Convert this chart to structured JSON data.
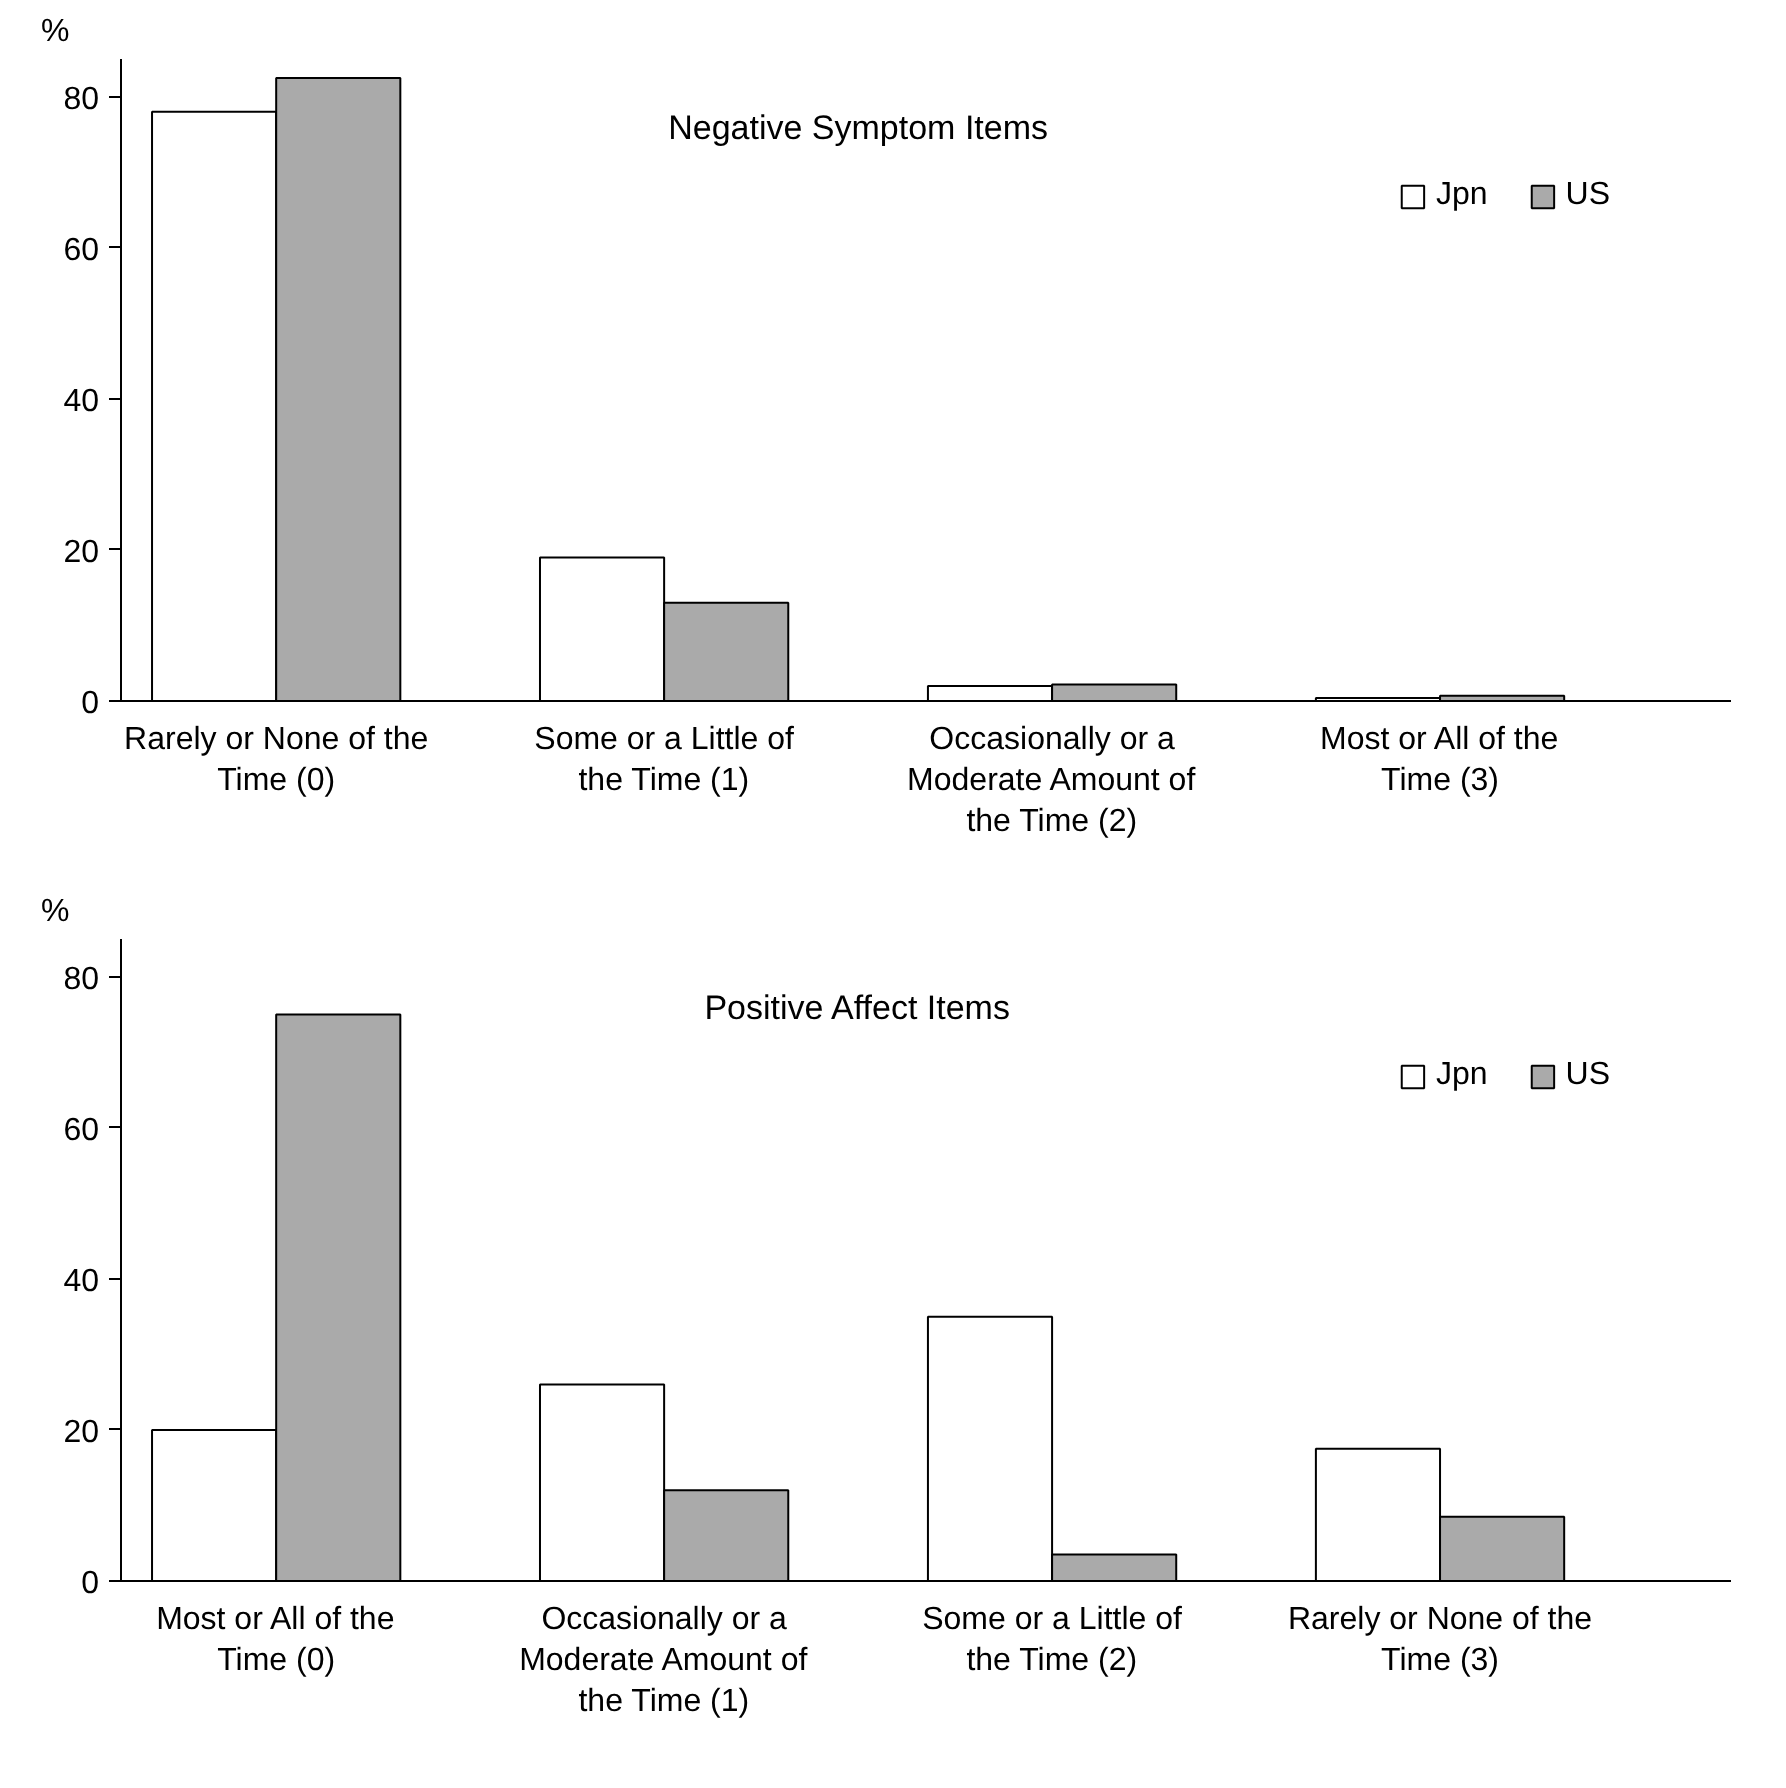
{
  "chart_data": [
    {
      "type": "bar",
      "title": "Negative Symptom Items",
      "ylabel": "%",
      "categories": [
        "Rarely or None of the Time (0)",
        "Some or a Little of the Time (1)",
        "Occasionally or a Moderate Amount of the Time (2)",
        "Most or All of the Time (3)"
      ],
      "series": [
        {
          "name": "Jpn",
          "color": "#ffffff",
          "values": [
            78,
            19,
            2,
            0.4
          ]
        },
        {
          "name": "US",
          "color": "#aaaaaa",
          "values": [
            82.5,
            13,
            2.2,
            0.7
          ]
        }
      ],
      "ylim": [
        0,
        85
      ],
      "yticks": [
        0,
        20,
        40,
        60,
        80
      ],
      "grid": false,
      "legend": "top right"
    },
    {
      "type": "bar",
      "title": "Positive Affect Items",
      "ylabel": "%",
      "categories": [
        "Most or All of the Time (0)",
        "Occasionally or a Moderate Amount of the Time (1)",
        "Some or a Little of the Time (2)",
        "Rarely or None of the Time (3)"
      ],
      "series": [
        {
          "name": "Jpn",
          "color": "#ffffff",
          "values": [
            20,
            26,
            35,
            17.5
          ]
        },
        {
          "name": "US",
          "color": "#aaaaaa",
          "values": [
            75,
            12,
            3.5,
            8.5
          ]
        }
      ],
      "ylim": [
        0,
        85
      ],
      "yticks": [
        0,
        20,
        40,
        60,
        80
      ],
      "grid": false,
      "legend": "top right"
    }
  ]
}
